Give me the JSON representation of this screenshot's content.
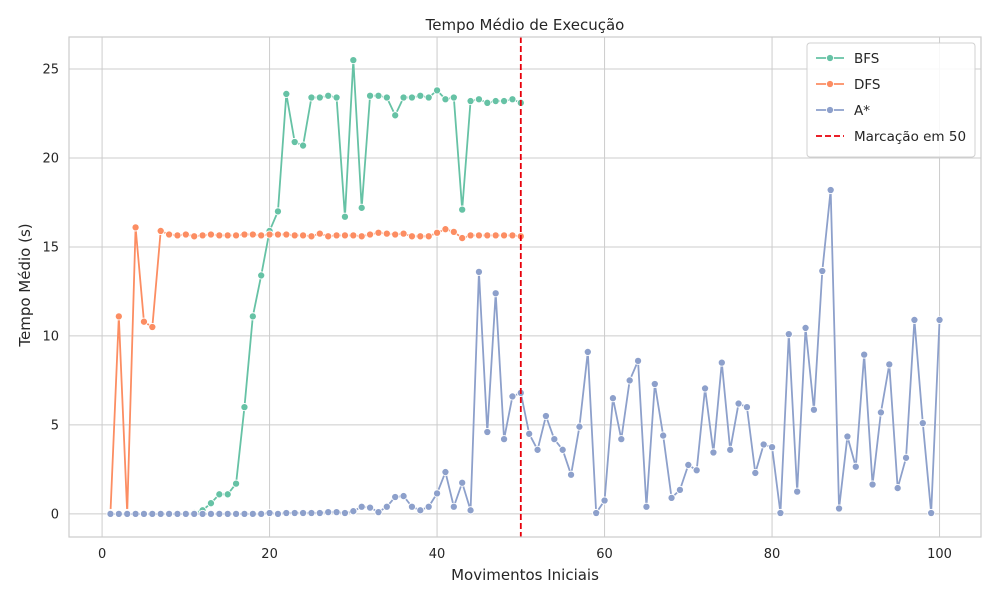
{
  "chart_data": {
    "type": "line",
    "title": "Tempo Médio de Execução",
    "xlabel": "Movimentos Iniciais",
    "ylabel": "Tempo Médio (s)",
    "xlim": [
      -3.95,
      104.95
    ],
    "ylim": [
      -1.3,
      26.8
    ],
    "xticks": [
      0,
      20,
      40,
      60,
      80,
      100
    ],
    "yticks": [
      0,
      5,
      10,
      15,
      20,
      25
    ],
    "grid": true,
    "legend_position": "top-right",
    "vline": {
      "x": 50,
      "label": "Marcação em 50",
      "color": "#e8000b"
    },
    "series": [
      {
        "name": "BFS",
        "color": "#66c2a5",
        "x": [
          1,
          2,
          3,
          4,
          5,
          6,
          7,
          8,
          9,
          10,
          11,
          12,
          13,
          14,
          15,
          16,
          17,
          18,
          19,
          20,
          21,
          22,
          23,
          24,
          25,
          26,
          27,
          28,
          29,
          30,
          31,
          32,
          33,
          34,
          35,
          36,
          37,
          38,
          39,
          40,
          41,
          42,
          43,
          44,
          45,
          46,
          47,
          48,
          49,
          50
        ],
        "y": [
          0,
          0,
          0,
          0,
          0,
          0,
          0,
          0,
          0,
          0,
          0.05,
          0.2,
          0.6,
          1.1,
          1.1,
          1.7,
          6.0,
          11.1,
          13.4,
          15.9,
          17.0,
          23.6,
          20.9,
          20.7,
          23.4,
          23.4,
          23.5,
          23.4,
          16.7,
          25.5,
          17.2,
          23.5,
          23.5,
          23.4,
          22.4,
          23.4,
          23.4,
          23.5,
          23.4,
          23.8,
          23.3,
          23.4,
          17.1,
          23.2,
          23.3,
          23.1,
          23.2,
          23.2,
          23.3,
          23.1
        ]
      },
      {
        "name": "DFS",
        "color": "#fc8d62",
        "x": [
          1,
          2,
          3,
          4,
          5,
          6,
          7,
          8,
          9,
          10,
          11,
          12,
          13,
          14,
          15,
          16,
          17,
          18,
          19,
          20,
          21,
          22,
          23,
          24,
          25,
          26,
          27,
          28,
          29,
          30,
          31,
          32,
          33,
          34,
          35,
          36,
          37,
          38,
          39,
          40,
          41,
          42,
          43,
          44,
          45,
          46,
          47,
          48,
          49,
          50
        ],
        "y": [
          0.05,
          11.1,
          0.05,
          16.1,
          10.8,
          10.5,
          15.9,
          15.7,
          15.65,
          15.7,
          15.6,
          15.65,
          15.7,
          15.65,
          15.65,
          15.65,
          15.7,
          15.7,
          15.65,
          15.7,
          15.7,
          15.7,
          15.65,
          15.65,
          15.6,
          15.75,
          15.6,
          15.65,
          15.65,
          15.65,
          15.6,
          15.7,
          15.8,
          15.75,
          15.7,
          15.75,
          15.6,
          15.6,
          15.6,
          15.8,
          16.0,
          15.85,
          15.5,
          15.65,
          15.65,
          15.65,
          15.65,
          15.65,
          15.65,
          15.6
        ]
      },
      {
        "name": "A*",
        "color": "#8da0cb",
        "x": [
          1,
          2,
          3,
          4,
          5,
          6,
          7,
          8,
          9,
          10,
          11,
          12,
          13,
          14,
          15,
          16,
          17,
          18,
          19,
          20,
          21,
          22,
          23,
          24,
          25,
          26,
          27,
          28,
          29,
          30,
          31,
          32,
          33,
          34,
          35,
          36,
          37,
          38,
          39,
          40,
          41,
          42,
          43,
          44,
          45,
          46,
          47,
          48,
          49,
          50,
          51,
          52,
          53,
          54,
          55,
          56,
          57,
          58,
          59,
          60,
          61,
          62,
          63,
          64,
          65,
          66,
          67,
          68,
          69,
          70,
          71,
          72,
          73,
          74,
          75,
          76,
          77,
          78,
          79,
          80,
          81,
          82,
          83,
          84,
          85,
          86,
          87,
          88,
          89,
          90,
          91,
          92,
          93,
          94,
          95,
          96,
          97,
          98,
          99,
          100
        ],
        "y": [
          0,
          0,
          0,
          0,
          0,
          0,
          0,
          0,
          0,
          0,
          0,
          0,
          0,
          0,
          0,
          0,
          0,
          0,
          0,
          0.05,
          0,
          0.05,
          0.05,
          0.05,
          0.05,
          0.05,
          0.1,
          0.1,
          0.05,
          0.15,
          0.4,
          0.35,
          0.1,
          0.4,
          0.95,
          1.0,
          0.4,
          0.2,
          0.4,
          1.15,
          2.35,
          0.4,
          1.75,
          0.2,
          13.6,
          4.6,
          12.4,
          4.2,
          6.6,
          6.8,
          4.5,
          3.6,
          5.5,
          4.2,
          3.6,
          2.2,
          4.9,
          9.1,
          0.05,
          0.75,
          6.5,
          4.2,
          7.5,
          8.6,
          0.4,
          7.3,
          4.4,
          0.9,
          1.35,
          2.75,
          2.45,
          7.05,
          3.45,
          8.5,
          3.6,
          6.2,
          6.0,
          2.3,
          3.9,
          3.75,
          0.05,
          10.1,
          1.25,
          10.45,
          5.85,
          13.65,
          18.2,
          0.3,
          4.35,
          2.65,
          8.95,
          1.65,
          5.7,
          8.4,
          1.45,
          3.15,
          10.9,
          5.1,
          0.05,
          10.9
        ]
      }
    ]
  }
}
